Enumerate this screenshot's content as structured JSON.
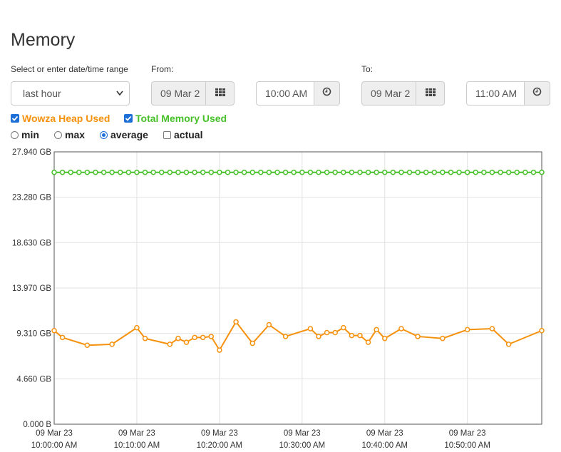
{
  "page_title": "Memory",
  "range": {
    "label": "Select or enter date/time range",
    "value": "last hour"
  },
  "from": {
    "label": "From:",
    "date": "09 Mar 2",
    "time": "10:00 AM"
  },
  "to": {
    "label": "To:",
    "date": "09 Mar 2",
    "time": "11:00 AM"
  },
  "icons": {
    "calendar": "calendar-grid-icon",
    "clock": "clock-icon"
  },
  "series_toggles": [
    {
      "label": "Wowza Heap Used",
      "checked": true,
      "color": "#f5910d"
    },
    {
      "label": "Total Memory Used",
      "checked": true,
      "color": "#47c12a"
    }
  ],
  "modes": [
    {
      "label": "min",
      "selected": false,
      "kind": "radio"
    },
    {
      "label": "max",
      "selected": false,
      "kind": "radio"
    },
    {
      "label": "average",
      "selected": true,
      "kind": "radio"
    },
    {
      "label": "actual",
      "selected": false,
      "kind": "checkbox"
    }
  ],
  "chart_data": {
    "type": "line",
    "x_unit": "minutes",
    "xlim": [
      0,
      59
    ],
    "ylim": [
      0,
      27.94
    ],
    "y_ticks": [
      0,
      4.66,
      9.31,
      13.97,
      18.63,
      23.28,
      27.94
    ],
    "y_tick_labels": [
      "0.000 B",
      "4.660 GB",
      "9.310 GB",
      "13.970 GB",
      "18.630 GB",
      "23.280 GB",
      "27.940 GB"
    ],
    "x_ticks": [
      0,
      10,
      20,
      30,
      40,
      50
    ],
    "x_tick_labels": [
      [
        "09 Mar 23",
        "10:00:00 AM"
      ],
      [
        "09 Mar 23",
        "10:10:00 AM"
      ],
      [
        "09 Mar 23",
        "10:20:00 AM"
      ],
      [
        "09 Mar 23",
        "10:30:00 AM"
      ],
      [
        "09 Mar 23",
        "10:40:00 AM"
      ],
      [
        "09 Mar 23",
        "10:50:00 AM"
      ]
    ],
    "grid": true,
    "series": [
      {
        "name": "Total Memory Used",
        "color": "#47c12a",
        "x": [
          0,
          1,
          2,
          3,
          4,
          5,
          6,
          7,
          8,
          9,
          10,
          11,
          12,
          13,
          14,
          15,
          16,
          17,
          18,
          19,
          20,
          21,
          22,
          23,
          24,
          25,
          26,
          27,
          28,
          29,
          30,
          31,
          32,
          33,
          34,
          35,
          36,
          37,
          38,
          39,
          40,
          41,
          42,
          43,
          44,
          45,
          46,
          47,
          48,
          49,
          50,
          51,
          52,
          53,
          54,
          55,
          56,
          57,
          58,
          59
        ],
        "y": [
          25.84,
          25.84,
          25.84,
          25.84,
          25.84,
          25.84,
          25.84,
          25.84,
          25.84,
          25.84,
          25.84,
          25.84,
          25.84,
          25.84,
          25.84,
          25.84,
          25.84,
          25.84,
          25.84,
          25.84,
          25.84,
          25.84,
          25.84,
          25.84,
          25.84,
          25.84,
          25.84,
          25.84,
          25.84,
          25.84,
          25.84,
          25.84,
          25.84,
          25.84,
          25.84,
          25.84,
          25.84,
          25.84,
          25.84,
          25.84,
          25.84,
          25.84,
          25.84,
          25.84,
          25.84,
          25.84,
          25.84,
          25.84,
          25.84,
          25.84,
          25.84,
          25.84,
          25.84,
          25.84,
          25.84,
          25.84,
          25.84,
          25.84,
          25.84,
          25.84
        ]
      },
      {
        "name": "Wowza Heap Used",
        "color": "#f5910d",
        "x": [
          0,
          1,
          4,
          7,
          10,
          11,
          14,
          15,
          16,
          17,
          18,
          19,
          20,
          22,
          24,
          26,
          28,
          31,
          32,
          33,
          34,
          35,
          36,
          37,
          38,
          39,
          40,
          42,
          44,
          47,
          50,
          53,
          55,
          59
        ],
        "y": [
          9.6,
          8.9,
          8.1,
          8.2,
          9.9,
          8.8,
          8.2,
          8.8,
          8.4,
          8.9,
          8.9,
          9.0,
          7.6,
          10.5,
          8.3,
          10.2,
          9.0,
          9.8,
          9.0,
          9.4,
          9.4,
          9.9,
          9.1,
          9.1,
          8.4,
          9.7,
          8.8,
          9.8,
          9.0,
          8.8,
          9.7,
          9.8,
          8.2,
          9.6
        ]
      }
    ]
  }
}
